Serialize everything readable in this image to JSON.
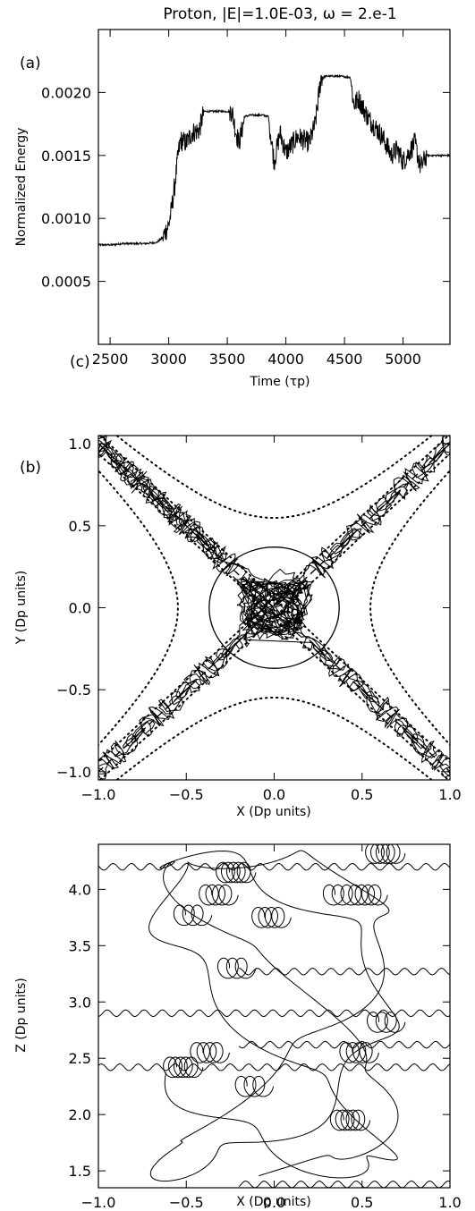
{
  "chart_data": [
    {
      "id": "a",
      "type": "line",
      "panel_label": "(a)",
      "corner_label": "(c)",
      "title": "Proton, |E|=1.0E-03, ω = 2.e-1",
      "xlabel": "Time (τp)",
      "ylabel": "Normalized Energy",
      "xlim": [
        2400,
        5400
      ],
      "ylim": [
        0,
        0.0025
      ],
      "xticks": [
        2500,
        3000,
        3500,
        4000,
        4500,
        5000
      ],
      "yticks": [
        0.0005,
        0.001,
        0.0015,
        0.002
      ],
      "ytick_labels": [
        "0.0005",
        "0.0010",
        "0.0015",
        "0.0020"
      ],
      "series": [
        {
          "x": [
            2400,
            2520,
            2600,
            2700,
            2800,
            2900,
            2950,
            3000,
            3020,
            3050,
            3080,
            3100,
            3150,
            3200,
            3260,
            3300,
            3400,
            3500,
            3540,
            3570,
            3600,
            3650,
            3700,
            3800,
            3850,
            3880,
            3900,
            3950,
            4000,
            4100,
            4200,
            4250,
            4300,
            4350,
            4450,
            4550,
            4580,
            4620,
            4700,
            4800,
            4850,
            4900,
            4950,
            5000,
            5050,
            5100,
            5150,
            5200,
            5250,
            5300,
            5400
          ],
          "y": [
            0.00079,
            0.00079,
            0.0008,
            0.0008,
            0.0008,
            0.00081,
            0.00085,
            0.00095,
            0.00105,
            0.00125,
            0.0015,
            0.00162,
            0.0016,
            0.00168,
            0.0017,
            0.00185,
            0.00185,
            0.00185,
            0.00185,
            0.0017,
            0.0016,
            0.00181,
            0.00182,
            0.00182,
            0.00181,
            0.0016,
            0.00145,
            0.00168,
            0.00152,
            0.00165,
            0.0016,
            0.00175,
            0.00212,
            0.00213,
            0.00213,
            0.00212,
            0.0019,
            0.00195,
            0.0018,
            0.00168,
            0.0016,
            0.0015,
            0.00155,
            0.00145,
            0.00152,
            0.0016,
            0.0014,
            0.0015,
            0.0015,
            0.0015,
            0.0015
          ]
        }
      ]
    },
    {
      "id": "b",
      "type": "line",
      "panel_label": "(b)",
      "xlabel": "X (Dp units)",
      "ylabel": "Y (Dp units)",
      "xlim": [
        -1,
        1
      ],
      "ylim": [
        -1.05,
        1.05
      ],
      "xticks": [
        -1,
        -0.5,
        0,
        0.5,
        1
      ],
      "xtick_labels": [
        "−1.0",
        "−0.5",
        "0.0",
        "0.5",
        "1.0"
      ],
      "yticks": [
        -1,
        -0.5,
        0,
        0.5,
        1
      ],
      "ytick_labels": [
        "−1.0",
        "−0.5",
        "0.0",
        "0.5",
        "1.0"
      ],
      "circle_radius": 0.37,
      "separatrix_dotted_levels": [
        0.3,
        -0.3
      ],
      "separatrix_dashed": [
        1,
        -1
      ]
    },
    {
      "id": "c",
      "type": "line",
      "xlabel": "X (Dp units)",
      "ylabel": "Z (Dp units)",
      "xlim": [
        -1,
        1
      ],
      "ylim": [
        1.35,
        4.4
      ],
      "xticks": [
        -1,
        -0.5,
        0,
        0.5,
        1
      ],
      "xtick_labels": [
        "−1.0",
        "−0.5",
        "0.0",
        "0.5",
        "1.0"
      ],
      "yticks": [
        1.5,
        2,
        2.5,
        3,
        3.5,
        4
      ],
      "ytick_labels": [
        "1.5",
        "2.0",
        "2.5",
        "3.0",
        "3.5",
        "4.0"
      ],
      "drift_levels": [
        4.2,
        3.27,
        2.9,
        2.62,
        2.42,
        1.38
      ],
      "gyro_centers": [
        [
          -0.55,
          3.77
        ],
        [
          -0.4,
          3.95
        ],
        [
          -0.3,
          4.15
        ],
        [
          0.3,
          3.95
        ],
        [
          0.45,
          3.95
        ],
        [
          0.55,
          4.32
        ],
        [
          -0.3,
          3.3
        ],
        [
          -0.45,
          2.55
        ],
        [
          -0.6,
          2.42
        ],
        [
          0.55,
          2.82
        ],
        [
          0.4,
          2.55
        ],
        [
          0.35,
          1.95
        ],
        [
          -0.2,
          2.25
        ],
        [
          -0.1,
          3.75
        ]
      ]
    }
  ]
}
